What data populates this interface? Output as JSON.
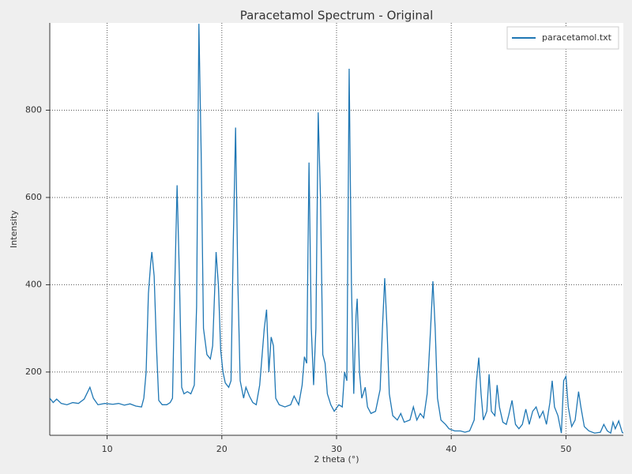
{
  "chart_data": {
    "type": "line",
    "title": "Paracetamol Spectrum - Original",
    "x_label": "2 theta (°)",
    "y_label": "Intensity",
    "xlim": [
      5,
      55
    ],
    "ylim": [
      55,
      1000
    ],
    "xticks": [
      10,
      20,
      30,
      40,
      50
    ],
    "yticks": [
      200,
      400,
      600,
      800
    ],
    "grid": true,
    "legend": "upper right",
    "x": [
      5.0,
      5.3,
      5.6,
      6.0,
      6.5,
      7.0,
      7.5,
      8.0,
      8.5,
      8.8,
      9.2,
      9.8,
      10.5,
      11.0,
      11.5,
      12.0,
      12.5,
      13.0,
      13.2,
      13.4,
      13.6,
      13.8,
      13.9,
      14.1,
      14.3,
      14.5,
      14.8,
      15.2,
      15.5,
      15.7,
      15.9,
      16.1,
      16.3,
      16.5,
      16.7,
      17.0,
      17.3,
      17.6,
      17.8,
      18.0,
      18.2,
      18.4,
      18.7,
      19.0,
      19.2,
      19.5,
      19.7,
      19.9,
      20.1,
      20.3,
      20.6,
      20.8,
      21.0,
      21.2,
      21.4,
      21.6,
      21.9,
      22.1,
      22.4,
      22.7,
      23.0,
      23.3,
      23.7,
      23.9,
      24.1,
      24.3,
      24.5,
      24.7,
      25.0,
      25.5,
      26.0,
      26.3,
      26.7,
      27.0,
      27.2,
      27.4,
      27.6,
      27.8,
      28.0,
      28.2,
      28.4,
      28.6,
      28.8,
      29.0,
      29.2,
      29.5,
      29.8,
      30.2,
      30.5,
      30.7,
      30.9,
      31.1,
      31.3,
      31.5,
      31.7,
      31.8,
      32.0,
      32.2,
      32.5,
      32.7,
      33.0,
      33.4,
      33.8,
      34.0,
      34.2,
      34.4,
      34.6,
      34.9,
      35.3,
      35.6,
      35.9,
      36.4,
      36.7,
      37.0,
      37.3,
      37.6,
      37.9,
      38.2,
      38.4,
      38.6,
      38.8,
      39.1,
      39.5,
      39.8,
      40.3,
      40.8,
      41.2,
      41.6,
      42.0,
      42.2,
      42.4,
      42.6,
      42.8,
      43.1,
      43.3,
      43.5,
      43.8,
      44.0,
      44.2,
      44.5,
      44.8,
      45.0,
      45.3,
      45.6,
      45.9,
      46.2,
      46.5,
      46.8,
      47.1,
      47.4,
      47.7,
      48.0,
      48.3,
      48.6,
      48.8,
      49.0,
      49.3,
      49.6,
      49.8,
      50.0,
      50.2,
      50.5,
      50.8,
      51.1,
      51.3,
      51.6,
      52.0,
      52.5,
      53.0,
      53.3,
      53.6,
      53.9,
      54.1,
      54.3,
      54.6,
      54.9,
      55.0
    ],
    "series": [
      {
        "name": "paracetamol.txt",
        "color": "#1f77b4",
        "values": [
          140,
          130,
          138,
          128,
          125,
          130,
          128,
          138,
          165,
          140,
          125,
          128,
          126,
          128,
          124,
          127,
          122,
          120,
          140,
          200,
          380,
          450,
          475,
          420,
          260,
          135,
          125,
          125,
          130,
          140,
          400,
          628,
          420,
          165,
          150,
          155,
          150,
          170,
          350,
          998,
          700,
          300,
          240,
          230,
          260,
          475,
          400,
          250,
          200,
          175,
          165,
          180,
          500,
          760,
          400,
          180,
          140,
          165,
          145,
          130,
          125,
          170,
          300,
          343,
          200,
          280,
          260,
          140,
          125,
          120,
          125,
          145,
          125,
          170,
          235,
          220,
          680,
          300,
          170,
          300,
          795,
          600,
          240,
          220,
          150,
          125,
          110,
          125,
          120,
          200,
          180,
          895,
          400,
          150,
          330,
          368,
          200,
          140,
          165,
          120,
          105,
          110,
          160,
          300,
          415,
          300,
          150,
          100,
          90,
          105,
          85,
          90,
          120,
          90,
          105,
          95,
          150,
          300,
          408,
          300,
          140,
          90,
          80,
          70,
          65,
          65,
          62,
          65,
          90,
          180,
          233,
          150,
          90,
          110,
          195,
          110,
          100,
          170,
          120,
          85,
          80,
          100,
          135,
          80,
          70,
          80,
          115,
          80,
          110,
          120,
          95,
          110,
          80,
          130,
          180,
          120,
          100,
          60,
          180,
          190,
          120,
          75,
          90,
          155,
          120,
          75,
          65,
          60,
          62,
          80,
          65,
          60,
          85,
          70,
          88,
          62,
          60
        ]
      }
    ]
  }
}
